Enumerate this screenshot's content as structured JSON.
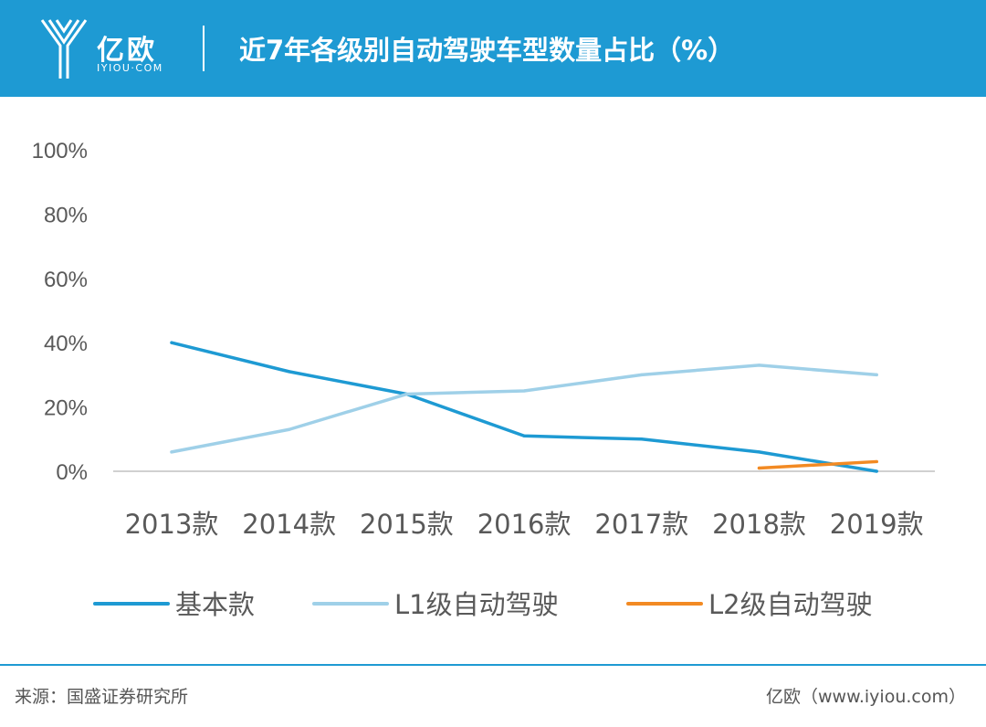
{
  "header": {
    "brand_cn": "亿欧",
    "brand_en": "IYIOU·COM",
    "title": "近7年各级别自动驾驶车型数量占比（%）",
    "bg_color": "#1e9ad3"
  },
  "chart_data": {
    "type": "line",
    "title": "近7年各级别自动驾驶车型数量占比（%）",
    "categories": [
      "2013款",
      "2014款",
      "2015款",
      "2016款",
      "2017款",
      "2018款",
      "2019款"
    ],
    "y_ticks": [
      "0%",
      "20%",
      "40%",
      "60%",
      "80%",
      "100%"
    ],
    "ylim": [
      0,
      100
    ],
    "grid": false,
    "legend_position": "bottom",
    "series": [
      {
        "name": "基本款",
        "color": "#1e9ad3",
        "values": [
          40,
          31,
          24,
          11,
          10,
          6,
          0
        ]
      },
      {
        "name": "L1级自动驾驶",
        "color": "#9fd0e8",
        "values": [
          6,
          13,
          24,
          25,
          30,
          33,
          30
        ]
      },
      {
        "name": "L2级自动驾驶",
        "color": "#f28a23",
        "values": [
          null,
          null,
          null,
          null,
          null,
          1,
          3
        ]
      }
    ]
  },
  "footer": {
    "source": "来源：国盛证券研究所",
    "credit": "亿欧（www.iyiou.com）"
  }
}
